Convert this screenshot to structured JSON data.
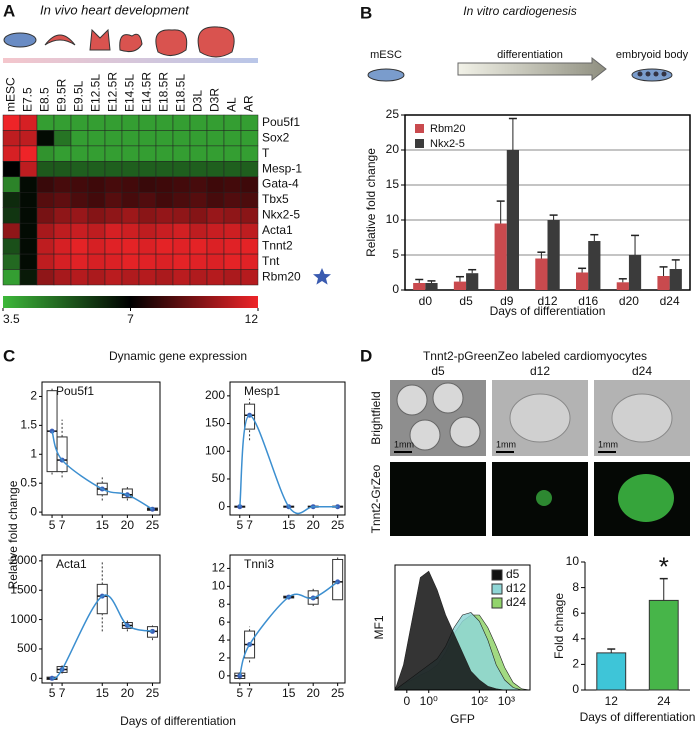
{
  "chart_data": [
    {
      "type": "heatmap",
      "panel": "A",
      "title": "In vivo heart development",
      "columns": [
        "mESC",
        "E7.5",
        "E8.5",
        "E9.5R",
        "E9.5L",
        "E12.5L",
        "E12.5R",
        "E14.5L",
        "E14.5R",
        "E18.5R",
        "E18.5L",
        "D3L",
        "D3R",
        "AL",
        "AR"
      ],
      "rows": [
        "Pou5f1",
        "Sox2",
        "T",
        "Mesp-1",
        "Gata-4",
        "Tbx5",
        "Nkx2-5",
        "Acta1",
        "Tnnt2",
        "Tnt",
        "Rbm20"
      ],
      "values": [
        [
          12,
          11.5,
          4,
          4,
          4,
          4,
          4,
          4,
          4,
          4,
          4,
          4,
          4,
          4,
          4
        ],
        [
          11,
          11,
          6.8,
          4.8,
          4,
          4,
          4,
          4,
          4,
          4,
          4,
          4,
          4,
          4,
          4
        ],
        [
          11.5,
          12,
          4.2,
          4,
          4,
          4,
          4,
          4,
          4,
          4,
          4,
          4,
          4,
          4,
          4
        ],
        [
          7,
          11,
          5.3,
          5.3,
          5.2,
          5.2,
          5.2,
          5.2,
          5.2,
          5.2,
          5.2,
          5.2,
          5.2,
          5.2,
          5.2
        ],
        [
          4.5,
          6.8,
          8.2,
          8.5,
          8.4,
          8.3,
          8.5,
          8.4,
          8.2,
          8.3,
          8.4,
          8.5,
          8.3,
          8.4,
          8.3
        ],
        [
          6.2,
          6.8,
          8.8,
          9,
          8.6,
          8.4,
          8.8,
          8.5,
          8.7,
          8.4,
          8.6,
          8.8,
          8.5,
          8.7,
          8.6
        ],
        [
          6,
          6.8,
          9.5,
          10,
          10.2,
          9.8,
          10,
          10.3,
          9.9,
          10.1,
          10,
          9.8,
          10.2,
          10,
          9.9
        ],
        [
          10,
          6.8,
          10.5,
          11,
          11.2,
          11,
          11.5,
          11.3,
          11,
          11.2,
          11.4,
          11,
          11.2,
          11.3,
          11
        ],
        [
          5.5,
          6.8,
          11,
          11.5,
          11.8,
          11.5,
          11.7,
          11.8,
          11.6,
          11.8,
          11.7,
          11.8,
          11.6,
          11.7,
          11.8
        ],
        [
          5,
          6.8,
          11,
          11.5,
          11.7,
          11.5,
          11.6,
          11.8,
          11.7,
          11.6,
          11.8,
          11.7,
          11.6,
          11.8,
          11.7
        ],
        [
          4,
          6.5,
          10,
          10.5,
          10.8,
          10.6,
          10.9,
          10.7,
          10.8,
          10.6,
          10.9,
          10.7,
          10.8,
          10.6,
          10.8
        ]
      ],
      "colorbar": {
        "ticks": [
          3.5,
          7,
          12
        ],
        "colors": [
          "#3db83a",
          "#000000",
          "#ee2428"
        ]
      }
    },
    {
      "type": "bar",
      "panel": "B",
      "title": "In vitro cardiogenesis",
      "schematic": [
        "mESC",
        "differentiation",
        "embryoid body"
      ],
      "categories": [
        "d0",
        "d5",
        "d9",
        "d12",
        "d16",
        "d20",
        "d24"
      ],
      "series": [
        {
          "name": "Rbm20",
          "color": "#c94a4e",
          "values": [
            1,
            1.2,
            9.5,
            4.5,
            2.5,
            1.1,
            2
          ],
          "errors": [
            0.5,
            0.7,
            3.2,
            0.9,
            0.6,
            0.5,
            1.3
          ]
        },
        {
          "name": "Nkx2-5",
          "color": "#3b3b3b",
          "values": [
            1,
            2.4,
            20,
            10,
            7,
            5,
            3
          ],
          "errors": [
            0.3,
            0.5,
            4.5,
            0.7,
            0.9,
            2.8,
            1.3
          ]
        }
      ],
      "ylim": [
        0,
        25
      ],
      "yticks": [
        0,
        5,
        10,
        15,
        20,
        25
      ],
      "grid": true,
      "frame": true,
      "ylabel": "Relative fold change",
      "xlabel": "Days of differentiation"
    },
    {
      "type": "box",
      "panel": "C",
      "title": "Dynamic gene expression",
      "ylabel": "Relative fold change",
      "xlabel": "Days of differentiation",
      "xlim": [
        3,
        26.5
      ],
      "xticks": [
        5,
        7,
        15,
        20,
        25
      ],
      "plots": [
        {
          "title": "Pou5f1",
          "x": [
            5,
            7,
            15,
            20,
            25
          ],
          "low": [
            0.65,
            0.6,
            0.2,
            0.2,
            0.02
          ],
          "q1": [
            0.7,
            0.7,
            0.3,
            0.25,
            0.03
          ],
          "median": [
            1.4,
            0.9,
            0.4,
            0.3,
            0.05
          ],
          "q3": [
            2.1,
            1.3,
            0.5,
            0.4,
            0.07
          ],
          "high": [
            2.15,
            1.6,
            0.6,
            0.45,
            0.08
          ],
          "ylim": [
            -0.05,
            2.25
          ],
          "yticks": [
            0,
            0.5,
            1,
            1.5,
            2
          ]
        },
        {
          "title": "Mesp1",
          "x": [
            5,
            7,
            15,
            20,
            25
          ],
          "low": [
            -2,
            120,
            -2,
            -2,
            -2
          ],
          "q1": [
            -1,
            140,
            -1,
            -1,
            -1
          ],
          "median": [
            0,
            165,
            0,
            0,
            0
          ],
          "q3": [
            1,
            185,
            1,
            1,
            1
          ],
          "high": [
            2,
            195,
            2,
            2,
            2
          ],
          "ylim": [
            -15,
            225
          ],
          "yticks": [
            0,
            50,
            100,
            150,
            200
          ]
        },
        {
          "title": "Acta1",
          "x": [
            5,
            7,
            15,
            20,
            25
          ],
          "low": [
            -30,
            80,
            800,
            800,
            650
          ],
          "q1": [
            -20,
            100,
            1100,
            850,
            700
          ],
          "median": [
            0,
            150,
            1400,
            900,
            800
          ],
          "q3": [
            20,
            200,
            1600,
            950,
            880
          ],
          "high": [
            30,
            220,
            2000,
            1000,
            900
          ],
          "ylim": [
            -80,
            2100
          ],
          "yticks": [
            0,
            500,
            1000,
            1500,
            2000
          ]
        },
        {
          "title": "Tnni3",
          "x": [
            5,
            7,
            15,
            20,
            25
          ],
          "low": [
            -0.4,
            1.5,
            8.6,
            7.8,
            8.5
          ],
          "q1": [
            -0.3,
            2,
            8.7,
            8,
            8.5
          ],
          "median": [
            0,
            3.5,
            8.8,
            8.7,
            10.5
          ],
          "q3": [
            0.3,
            5,
            8.9,
            9.5,
            13
          ],
          "high": [
            0.4,
            5.5,
            9,
            9.8,
            13.3
          ],
          "ylim": [
            -0.8,
            13.5
          ],
          "yticks": [
            0,
            2,
            4,
            6,
            8,
            10,
            12
          ]
        }
      ]
    },
    {
      "type": "image-grid",
      "panel": "D",
      "title": "Tnnt2-pGreenZeo labeled cardiomyocytes",
      "columns": [
        "d5",
        "d12",
        "d24"
      ],
      "rows": [
        "Brightfield",
        "Tnnt2-GrZeo"
      ],
      "scale_label": "1mm"
    },
    {
      "type": "area",
      "ylabel": "MF1",
      "xlabel": "GFP",
      "x": [
        0,
        0.25,
        0.5,
        0.75,
        1,
        1.25,
        1.5,
        1.75,
        2,
        2.25,
        2.5,
        2.75,
        3,
        3.25,
        3.5,
        3.75,
        4
      ],
      "xlim": [
        0,
        4
      ],
      "ylim": [
        0,
        100
      ],
      "xticks": [
        {
          "value": 0.35,
          "label": "0"
        },
        {
          "value": 1,
          "label": "10⁰"
        },
        {
          "value": 2.5,
          "label": "10²"
        },
        {
          "value": 3.3,
          "label": "10³"
        }
      ],
      "series": [
        {
          "name": "d5",
          "color": "#111111",
          "values": [
            0,
            20,
            55,
            90,
            95,
            80,
            60,
            45,
            30,
            15,
            8,
            3,
            1,
            0,
            0,
            0,
            0
          ]
        },
        {
          "name": "d12",
          "color": "#8fd6d6",
          "values": [
            0,
            5,
            10,
            15,
            20,
            25,
            35,
            50,
            60,
            62,
            55,
            40,
            20,
            8,
            2,
            0,
            0
          ]
        },
        {
          "name": "d24",
          "color": "#92d46c",
          "values": [
            0,
            5,
            8,
            12,
            15,
            20,
            30,
            45,
            55,
            60,
            60,
            50,
            35,
            18,
            6,
            1,
            0
          ]
        }
      ]
    },
    {
      "type": "bar",
      "categories": [
        "12",
        "24"
      ],
      "values": [
        2.9,
        7.0
      ],
      "errors": [
        0.3,
        1.7
      ],
      "colors": [
        "#3ec5d8",
        "#47b549"
      ],
      "ylim": [
        0,
        10
      ],
      "yticks": [
        0,
        2,
        4,
        6,
        8,
        10
      ],
      "grid": false,
      "frame": false,
      "ylabel": "Fold chnage",
      "xlabel": "Days of differentiation",
      "significance": {
        "text": "*",
        "category": "24"
      }
    }
  ]
}
